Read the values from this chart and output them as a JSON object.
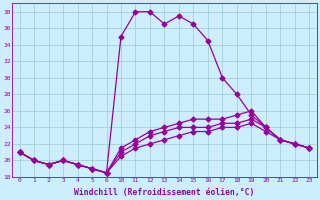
{
  "xlabel": "Windchill (Refroidissement éolien,°C)",
  "background_color": "#cceeff",
  "grid_color": "#99cccc",
  "line_color": "#990099",
  "x_labels": [
    "0",
    "1",
    "2",
    "3",
    "4",
    "5",
    "6",
    "10",
    "11",
    "12",
    "13",
    "14",
    "15",
    "16",
    "17",
    "18",
    "19",
    "20",
    "21",
    "22",
    "23"
  ],
  "ylim": [
    18,
    39
  ],
  "yticks_vals": [
    18,
    20,
    22,
    24,
    26,
    28,
    30,
    32,
    34,
    36,
    38
  ],
  "series1_y": [
    21.0,
    20.0,
    19.5,
    20.0,
    19.5,
    19.0,
    18.5,
    35.0,
    38.0,
    38.0,
    36.5,
    37.5,
    36.5,
    34.5,
    30.0,
    28.0,
    25.5,
    24.0,
    22.5,
    22.0,
    21.5
  ],
  "series2_y": [
    21.0,
    20.0,
    19.5,
    20.0,
    19.5,
    19.0,
    18.5,
    21.5,
    22.5,
    23.5,
    24.0,
    24.5,
    25.0,
    25.0,
    25.0,
    25.5,
    26.0,
    24.0,
    22.5,
    22.0,
    21.5
  ],
  "series3_y": [
    21.0,
    20.0,
    19.5,
    20.0,
    19.5,
    19.0,
    18.5,
    21.0,
    22.0,
    23.0,
    23.5,
    24.0,
    24.0,
    24.0,
    24.5,
    24.5,
    25.0,
    24.0,
    22.5,
    22.0,
    21.5
  ],
  "series4_y": [
    21.0,
    20.0,
    19.5,
    20.0,
    19.5,
    19.0,
    18.5,
    20.5,
    21.5,
    22.0,
    22.5,
    23.0,
    23.5,
    23.5,
    24.0,
    24.0,
    24.5,
    23.5,
    22.5,
    22.0,
    21.5
  ],
  "marker_size": 2.5,
  "line_width": 0.9,
  "tick_fontsize": 4.5,
  "xlabel_fontsize": 5.8
}
